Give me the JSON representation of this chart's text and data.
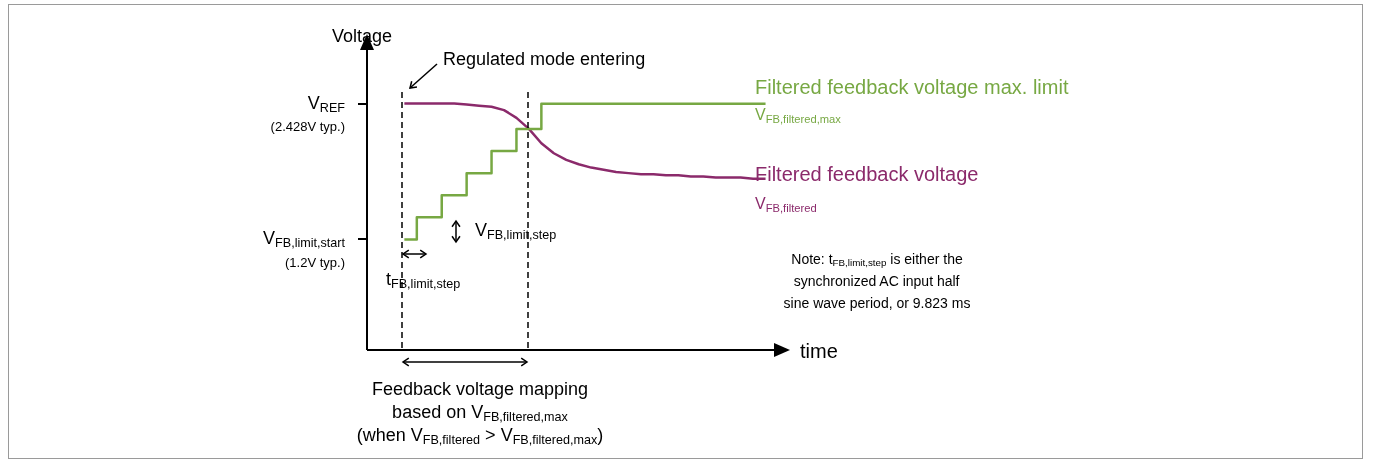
{
  "chart_data": {
    "type": "line",
    "ylabel": "Voltage",
    "xlabel": "time",
    "categories": [
      null,
      null,
      null,
      null,
      null,
      null,
      null,
      null,
      null,
      null,
      null,
      null,
      null,
      null,
      null,
      null,
      null,
      null,
      null,
      null,
      null,
      null,
      null,
      null,
      null,
      null,
      null,
      null,
      null,
      null,
      null,
      null,
      null,
      null
    ],
    "ylim": [
      0.2,
      2.95
    ],
    "yticks": [
      {
        "value": 1.2,
        "label": "V$_{FB,limit,start}$\n(1.2V typ.)"
      },
      {
        "value": 2.428,
        "label": "V$_{REF}$\n(2.428V typ.)"
      }
    ],
    "tick_labels": "y",
    "marker": "none",
    "line_style": "solid",
    "series": [
      {
        "name": "Filtered feedback voltage max. limit\nV$_{FB,filtered,max}$",
        "type": "step",
        "color": "#77a843",
        "values": [
          null,
          null,
          null,
          1.2,
          1.2,
          1.4,
          1.4,
          1.6,
          1.6,
          1.8,
          1.8,
          2.0,
          2.0,
          2.2,
          2.2,
          2.428,
          2.428,
          2.428,
          2.428,
          2.428,
          2.428,
          2.428,
          2.428,
          2.428,
          2.428,
          2.428,
          2.428,
          2.428,
          2.428,
          2.428,
          2.428,
          2.428,
          2.428,
          null
        ]
      },
      {
        "name": "Filtered feedback voltage\nV$_{FB,filtered}$",
        "type": "line",
        "color": "#8b2a6b",
        "values": [
          null,
          null,
          null,
          2.43,
          2.43,
          2.43,
          2.43,
          2.43,
          2.42,
          2.41,
          2.4,
          2.37,
          2.3,
          2.2,
          2.07,
          1.98,
          1.92,
          1.88,
          1.85,
          1.83,
          1.81,
          1.8,
          1.79,
          1.79,
          1.78,
          1.78,
          1.77,
          1.77,
          1.76,
          1.76,
          1.76,
          1.75,
          1.75,
          null
        ]
      }
    ],
    "annotations": [
      "Regulated mode entering",
      "V$_{FB,limit,step}$",
      "t$_{FB,limit,step}$",
      "Note: t$_{FB,limit,step}$ is either the\nsynchronized AC input half\nsine wave period, or 9.823 ms",
      "Feedback voltage mapping\nbased on V$_{FB,filtered,max}$\n(when V$_{FB,filtered}$ > V$_{FB,filtered,max}$)"
    ]
  }
}
